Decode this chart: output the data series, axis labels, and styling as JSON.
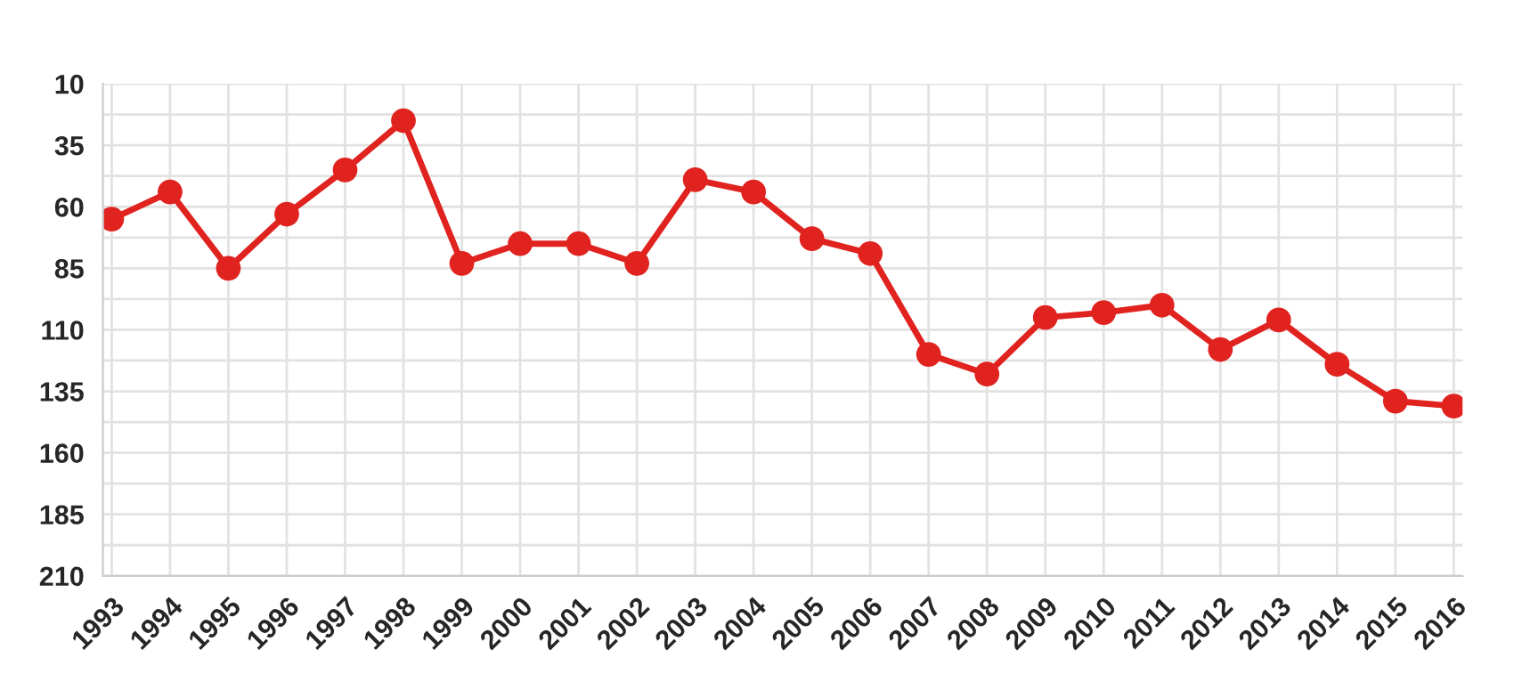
{
  "chart_data": {
    "type": "line",
    "categories": [
      "1993",
      "1994",
      "1995",
      "1996",
      "1997",
      "1998",
      "1999",
      "2000",
      "2001",
      "2002",
      "2003",
      "2004",
      "2005",
      "2006",
      "2007",
      "2008",
      "2009",
      "2010",
      "2011",
      "2012",
      "2013",
      "2014",
      "2015",
      "2016"
    ],
    "series": [
      {
        "color": "#e0231f",
        "values": [
          65,
          54,
          85,
          63,
          45,
          25,
          83,
          75,
          75,
          83,
          49,
          54,
          73,
          79,
          120,
          128,
          105,
          103,
          100,
          118,
          106,
          124,
          139,
          141
        ]
      }
    ],
    "ylim": [
      210,
      10
    ],
    "yticks": [
      10,
      {
        "value": 22.5,
        "label": null
      },
      35,
      {
        "value": 47.5,
        "label": null
      },
      60,
      {
        "value": 72.5,
        "label": null
      },
      85,
      {
        "value": 97.5,
        "label": null
      },
      110,
      {
        "value": 122.5,
        "label": null
      },
      135,
      {
        "value": 147.5,
        "label": null
      },
      160,
      {
        "value": 172.5,
        "label": null
      },
      185,
      {
        "value": 197.5,
        "label": null
      },
      210
    ],
    "grid": true,
    "marker": "circle",
    "line_style": "solid"
  }
}
